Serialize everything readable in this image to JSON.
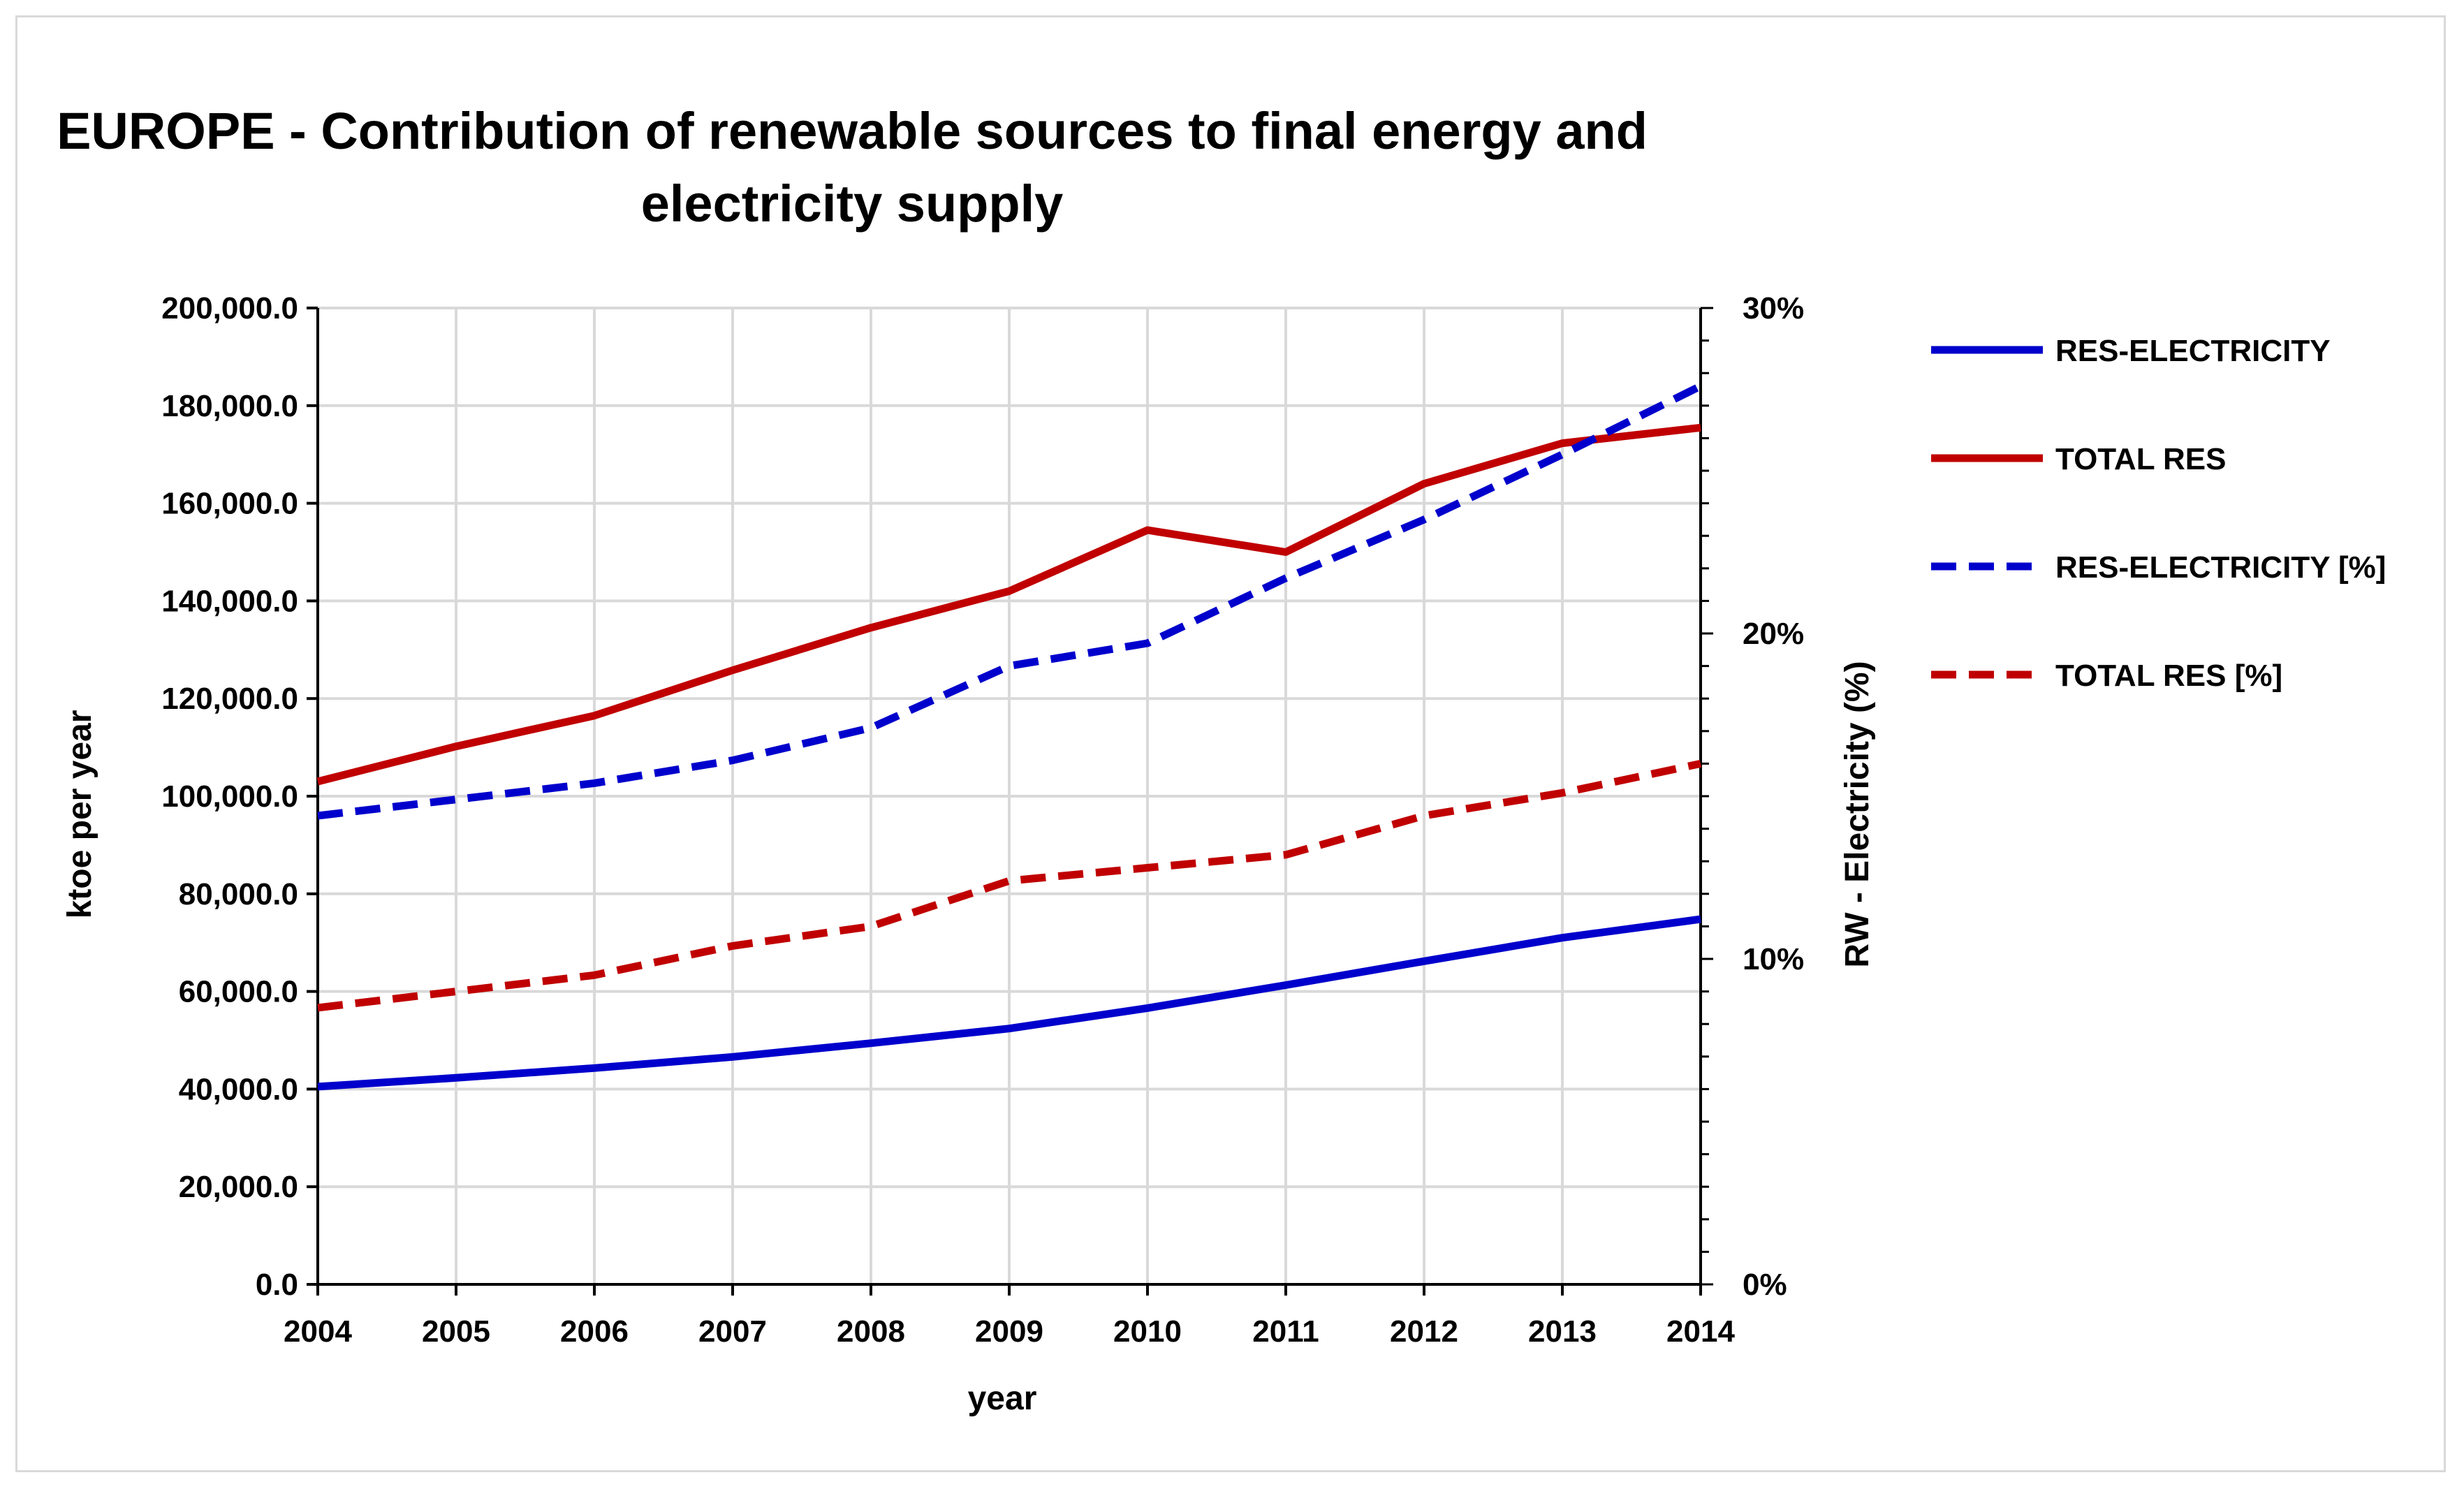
{
  "chart_data": {
    "type": "line",
    "title_line1": "EUROPE - Contribution of renewable sources to final energy and",
    "title_line2": "electricity supply",
    "xlabel": "year",
    "ylabel": "ktoe per year",
    "y2label": "RW - Electricity (%)",
    "categories": [
      "2004",
      "2005",
      "2006",
      "2007",
      "2008",
      "2009",
      "2010",
      "2011",
      "2012",
      "2013",
      "2014"
    ],
    "ylim": [
      0,
      200000
    ],
    "y_ticks": [
      "0.0",
      "20,000.0",
      "40,000.0",
      "60,000.0",
      "80,000.0",
      "100,000.0",
      "120,000.0",
      "140,000.0",
      "160,000.0",
      "180,000.0",
      "200,000.0"
    ],
    "y2lim": [
      0,
      30
    ],
    "y2_ticks": [
      "0%",
      "10%",
      "20%",
      "30%"
    ],
    "grid": true,
    "legend_position": "right",
    "series": [
      {
        "name": "RES-ELECTRICITY",
        "axis": "left",
        "style": "solid",
        "color": "#0000cc",
        "values": [
          40500,
          42300,
          44300,
          46600,
          49400,
          52400,
          56600,
          61300,
          66200,
          71000,
          74800
        ]
      },
      {
        "name": "TOTAL RES",
        "axis": "left",
        "style": "solid",
        "color": "#c00000",
        "values": [
          103000,
          110200,
          116500,
          125800,
          134500,
          142000,
          154500,
          150000,
          164000,
          172300,
          175500
        ]
      },
      {
        "name": "RES-ELECTRICITY [%]",
        "axis": "right",
        "style": "dashed",
        "color": "#0000cc",
        "values": [
          14.4,
          14.9,
          15.4,
          16.1,
          17.1,
          19.0,
          19.7,
          21.7,
          23.5,
          25.5,
          27.6
        ]
      },
      {
        "name": "TOTAL RES [%]",
        "axis": "right",
        "style": "dashed",
        "color": "#c00000",
        "values": [
          8.5,
          9.0,
          9.5,
          10.4,
          11.0,
          12.4,
          12.8,
          13.2,
          14.4,
          15.1,
          16.0
        ]
      }
    ]
  }
}
